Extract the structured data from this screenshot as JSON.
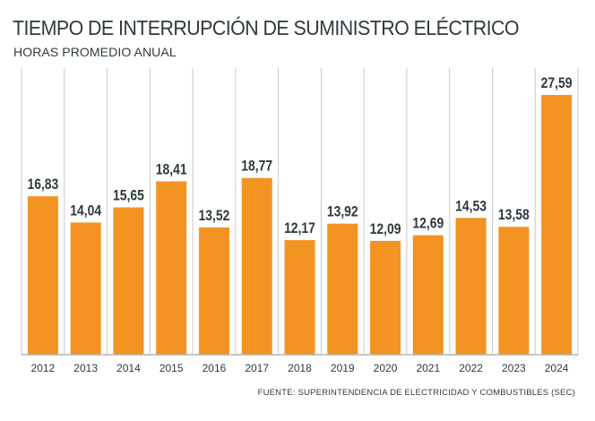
{
  "header": {
    "title": "TIEMPO DE INTERRUPCIÓN DE SUMINISTRO ELÉCTRICO",
    "subtitle": "HORAS PROMEDIO ANUAL"
  },
  "footer": {
    "source": "FUENTE: SUPERINTENDENCIA DE ELECTRICIDAD Y COMBUSTIBLES (SEC)"
  },
  "colors": {
    "bar": "#f39322",
    "divider": "#c9c9c9",
    "baseline": "#b5b5b5",
    "text": "#2f3a3f"
  },
  "chart_data": {
    "type": "bar",
    "title": "TIEMPO DE INTERRUPCIÓN DE SUMINISTRO ELÉCTRICO",
    "subtitle": "HORAS PROMEDIO ANUAL",
    "categories": [
      "2012",
      "2013",
      "2014",
      "2015",
      "2016",
      "2017",
      "2018",
      "2019",
      "2020",
      "2021",
      "2022",
      "2023",
      "2024"
    ],
    "values": [
      16.83,
      14.04,
      15.65,
      18.41,
      13.52,
      18.77,
      12.17,
      13.92,
      12.09,
      12.69,
      14.53,
      13.58,
      27.59
    ],
    "value_labels": [
      "16,83",
      "14,04",
      "15,65",
      "18,41",
      "13,52",
      "18,77",
      "12,17",
      "13,92",
      "12,09",
      "12,69",
      "14,53",
      "13,58",
      "27,59"
    ],
    "xlabel": "",
    "ylabel": "",
    "ylim": [
      0,
      28
    ],
    "grid": false,
    "legend": "none"
  }
}
